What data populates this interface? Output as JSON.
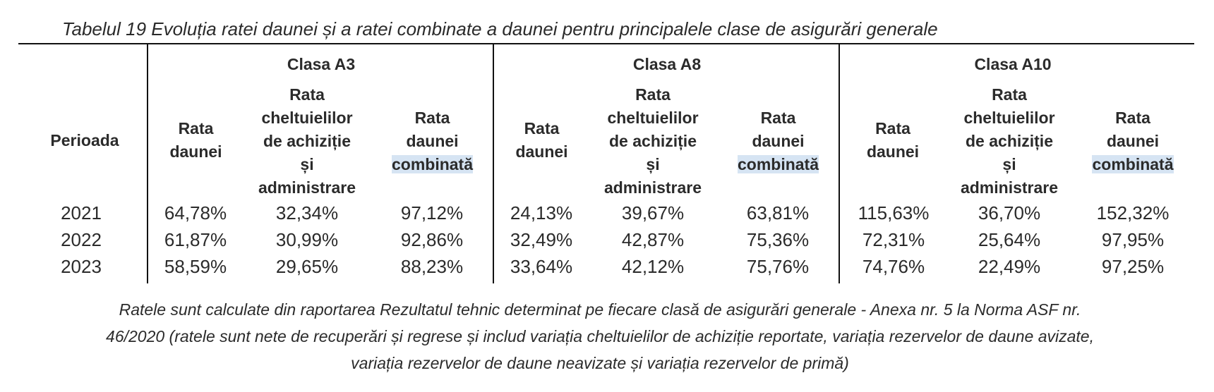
{
  "caption": "Tabelul 19 Evoluția ratei daunei și a ratei combinate a daunei pentru principalele clase de asigurări generale",
  "period_header": "Perioada",
  "classes": [
    {
      "name": "Clasa A3",
      "cols": [
        {
          "line1": "Rata",
          "line2": "daunei"
        },
        {
          "line1": "Rata",
          "line2": "cheltuielilor",
          "line3": "de achiziție",
          "line4": "și",
          "line5": "administrare"
        },
        {
          "line1": "Rata",
          "line2": "daunei",
          "line3": "combinată"
        }
      ]
    },
    {
      "name": "Clasa A8",
      "cols": [
        {
          "line1": "Rata",
          "line2": "daunei"
        },
        {
          "line1": "Rata",
          "line2": "cheltuielilor",
          "line3": "de achiziție",
          "line4": "și",
          "line5": "administrare"
        },
        {
          "line1": "Rata",
          "line2": "daunei",
          "line3": "combinată"
        }
      ]
    },
    {
      "name": "Clasa A10",
      "cols": [
        {
          "line1": "Rata",
          "line2": "daunei"
        },
        {
          "line1": "Rata",
          "line2": "cheltuielilor",
          "line3": "de achiziție",
          "line4": "și",
          "line5": "administrare"
        },
        {
          "line1": "Rata",
          "line2": "daunei",
          "line3": "combinată"
        }
      ]
    }
  ],
  "rows": [
    {
      "period": "2021",
      "values": [
        "64,78%",
        "32,34%",
        "97,12%",
        "24,13%",
        "39,67%",
        "63,81%",
        "115,63%",
        "36,70%",
        "152,32%"
      ]
    },
    {
      "period": "2022",
      "values": [
        "61,87%",
        "30,99%",
        "92,86%",
        "32,49%",
        "42,87%",
        "75,36%",
        "72,31%",
        "25,64%",
        "97,95%"
      ]
    },
    {
      "period": "2023",
      "values": [
        "58,59%",
        "29,65%",
        "88,23%",
        "33,64%",
        "42,12%",
        "75,76%",
        "74,76%",
        "22,49%",
        "97,25%"
      ]
    }
  ],
  "footnote": {
    "line1": "Ratele sunt calculate din raportarea Rezultatul tehnic determinat pe fiecare clasă de asigurări generale - Anexa nr. 5 la Norma ASF nr.",
    "line2": "46/2020 (ratele sunt nete de recuperări și regrese și includ variația cheltuielilor de achiziție reportate, variația rezervelor de daune avizate,",
    "line3": "variația rezervelor de daune neavizate și variația rezervelor de primă)"
  }
}
